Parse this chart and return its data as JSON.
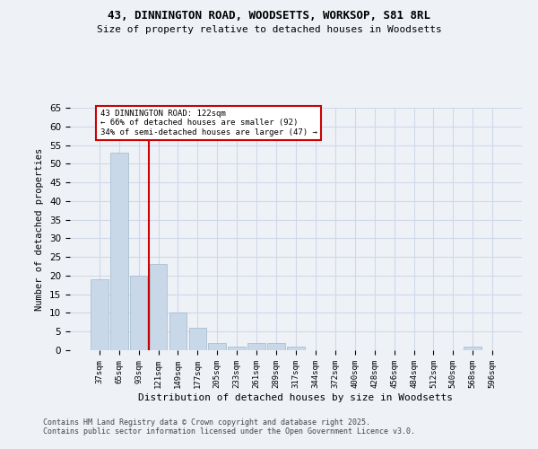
{
  "title1": "43, DINNINGTON ROAD, WOODSETTS, WORKSOP, S81 8RL",
  "title2": "Size of property relative to detached houses in Woodsetts",
  "xlabel": "Distribution of detached houses by size in Woodsetts",
  "ylabel": "Number of detached properties",
  "bar_color": "#c8d8e8",
  "bar_edge_color": "#a0b8cc",
  "grid_color": "#d0d8e8",
  "background_color": "#eef2f7",
  "categories": [
    "37sqm",
    "65sqm",
    "93sqm",
    "121sqm",
    "149sqm",
    "177sqm",
    "205sqm",
    "233sqm",
    "261sqm",
    "289sqm",
    "317sqm",
    "344sqm",
    "372sqm",
    "400sqm",
    "428sqm",
    "456sqm",
    "484sqm",
    "512sqm",
    "540sqm",
    "568sqm",
    "596sqm"
  ],
  "values": [
    19,
    53,
    20,
    23,
    10,
    6,
    2,
    1,
    2,
    2,
    1,
    0,
    0,
    0,
    0,
    0,
    0,
    0,
    0,
    1,
    0
  ],
  "red_line_x": 2.5,
  "annotation_title": "43 DINNINGTON ROAD: 122sqm",
  "annotation_line1": "← 66% of detached houses are smaller (92)",
  "annotation_line2": "34% of semi-detached houses are larger (47) →",
  "annotation_box_color": "#ffffff",
  "annotation_box_edge": "#cc0000",
  "red_line_color": "#cc0000",
  "footer1": "Contains HM Land Registry data © Crown copyright and database right 2025.",
  "footer2": "Contains public sector information licensed under the Open Government Licence v3.0.",
  "ylim": [
    0,
    65
  ],
  "yticks": [
    0,
    5,
    10,
    15,
    20,
    25,
    30,
    35,
    40,
    45,
    50,
    55,
    60,
    65
  ]
}
